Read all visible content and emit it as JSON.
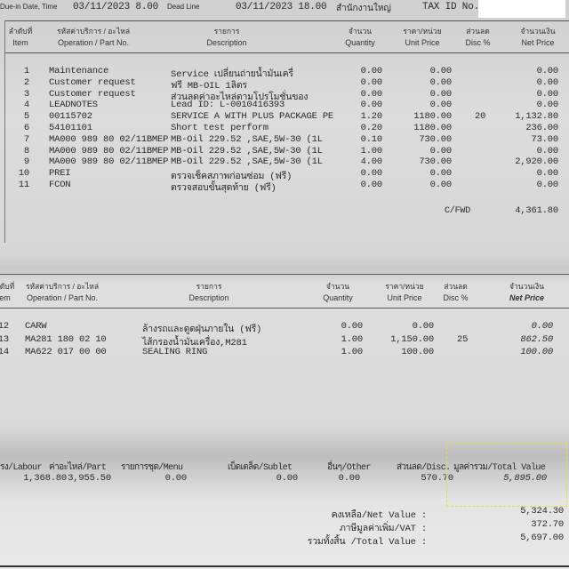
{
  "top": {
    "due_label": "Due-in Date, Time",
    "due_value": "03/11/2023   8.00",
    "deadline_label": "Dead Line",
    "deadline_value": "03/11/2023   18.00",
    "branch": "สำนักงานใหญ่",
    "tax_label": "TAX ID No."
  },
  "headers": {
    "item_th": "ลำดับที่",
    "item_en": "Item",
    "part_th": "รหัสค่าบริการ / อะไหล่",
    "part_en": "Operation / Part No.",
    "desc_th": "รายการ",
    "desc_en": "Description",
    "qty_th": "จำนวน",
    "qty_en": "Quantity",
    "price_th": "ราคา/หน่วย",
    "price_en": "Unit Price",
    "disc_th": "ส่วนลด",
    "disc_en": "Disc %",
    "net_th": "จำนวนเงิน",
    "net_en": "Net Price"
  },
  "table1": [
    {
      "item": "1",
      "part": "Maintenance",
      "desc": "Service เปลี่ยนถ่ายน้ำมันเครื่",
      "qty": "0.00",
      "price": "0.00",
      "disc": "",
      "net": "0.00"
    },
    {
      "item": "2",
      "part": "Customer request",
      "desc": "ฟรี MB-OIL 1ลิตร",
      "qty": "0.00",
      "price": "0.00",
      "disc": "",
      "net": "0.00"
    },
    {
      "item": "3",
      "part": "Customer request",
      "desc": "ส่วนลดค่าอะไหล่ตามโปรโมชั่นของ",
      "qty": "0.00",
      "price": "0.00",
      "disc": "",
      "net": "0.00"
    },
    {
      "item": "4",
      "part": "LEADNOTES",
      "desc": "Lead ID: L-0010416393",
      "qty": "0.00",
      "price": "0.00",
      "disc": "",
      "net": "0.00"
    },
    {
      "item": "5",
      "part": "00115702",
      "desc": "SERVICE A WITH PLUS PACKAGE PE",
      "qty": "1.20",
      "price": "1180.00",
      "disc": "20",
      "net": "1,132.80"
    },
    {
      "item": "6",
      "part": "54101101",
      "desc": "Short test perform",
      "qty": "0.20",
      "price": "1180.00",
      "disc": "",
      "net": "236.00"
    },
    {
      "item": "7",
      "part": "MA000 989 80 02/11BMEP",
      "desc": "MB-Oil 229.52 ,SAE,5W-30 (1L",
      "qty": "0.10",
      "price": "730.00",
      "disc": "",
      "net": "73.00"
    },
    {
      "item": "8",
      "part": "MA000 989 80 02/11BMEP",
      "desc": "MB-Oil 229.52 ,SAE,5W-30 (1L",
      "qty": "1.00",
      "price": "0.00",
      "disc": "",
      "net": "0.00"
    },
    {
      "item": "9",
      "part": "MA000 989 80 02/11BMEP",
      "desc": "MB-Oil 229.52 ,SAE,5W-30 (1L",
      "qty": "4.00",
      "price": "730.00",
      "disc": "",
      "net": "2,920.00"
    },
    {
      "item": "10",
      "part": "PREI",
      "desc": "ตรวจเช็คสภาพก่อนซ่อม (ฟรี)",
      "qty": "0.00",
      "price": "0.00",
      "disc": "",
      "net": "0.00"
    },
    {
      "item": "11",
      "part": "FCON",
      "desc": "ตรวจสอบขั้นสุดท้าย (ฟรี)",
      "qty": "0.00",
      "price": "0.00",
      "disc": "",
      "net": "0.00"
    }
  ],
  "cfwd_label": "C/FWD",
  "cfwd_value": "4,361.80",
  "table2": [
    {
      "item": "12",
      "part": "CARW",
      "desc": "ล้างรถและดูดฝุ่นภายใน (ฟรี)",
      "qty": "0.00",
      "price": "0.00",
      "disc": "",
      "net": "0.00"
    },
    {
      "item": "13",
      "part": "MA281 180 02 10",
      "desc": "ไส้กรองน้ำมันเครื่อง,M281",
      "qty": "1.00",
      "price": "1,150.00",
      "disc": "25",
      "net": "862.50"
    },
    {
      "item": "14",
      "part": "MA622 017 00 00",
      "desc": "SEALING RING",
      "qty": "1.00",
      "price": "100.00",
      "disc": "",
      "net": "100.00"
    }
  ],
  "summary": {
    "labour_label": "รง/Labour",
    "labour": "1,368.80",
    "part_label": "ค่าอะไหล่/Part",
    "part": "3,955.50",
    "menu_label": "รายการชุด/Menu",
    "menu": "0.00",
    "sublet_label": "เบ็ดเตล็ด/Sublet",
    "sublet": "0.00",
    "other_label": "อื่นๆ/Other",
    "other": "0.00",
    "disc_label": "ส่วนลด/Disc.",
    "disc": "570.70",
    "total_label": "มูลค่ารวม/Total Value",
    "total": "5,895.00"
  },
  "totals": {
    "net_label": "คงเหลือ/Net Value :",
    "net": "5,324.30",
    "vat_label": "ภาษีมูลค่าเพิ่ม/VAT :",
    "vat": "372.70",
    "grand_label": "รวมทั้งสิ้น /Total Value :",
    "grand": "5,697.00"
  },
  "colors": {
    "highlight_box": "#e0e040",
    "redaction": "#ffffff"
  }
}
